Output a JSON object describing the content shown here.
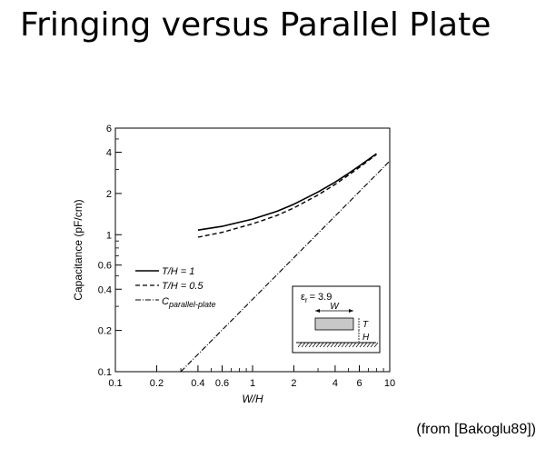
{
  "slide": {
    "title": "Fringing versus Parallel Plate",
    "source": "(from [Bakoglu89])"
  },
  "chart_data": {
    "type": "line",
    "xlabel": "W/H",
    "ylabel": "Capacitance (pF/cm)",
    "xscale": "log",
    "yscale": "log",
    "xlim": [
      0.1,
      10
    ],
    "ylim": [
      0.1,
      6
    ],
    "grid": false,
    "legend_position": "left",
    "x_ticks": [
      0.1,
      0.2,
      0.4,
      0.6,
      1,
      2,
      4,
      6,
      10
    ],
    "x_tick_labels": [
      "0.1",
      "0.2",
      "0.4",
      "0.6",
      "1",
      "2",
      "4",
      "6",
      "10"
    ],
    "y_ticks": [
      0.1,
      0.2,
      0.4,
      0.6,
      1,
      2,
      4,
      6
    ],
    "y_tick_labels": [
      "0.1",
      "0.2",
      "0.4",
      "0.6",
      "1",
      "2",
      "4",
      "6"
    ],
    "series": [
      {
        "name": "T/H = 1",
        "style": "solid",
        "x": [
          0.4,
          0.6,
          1,
          1.5,
          2,
          3,
          4,
          5,
          6,
          8
        ],
        "y": [
          1.08,
          1.15,
          1.3,
          1.48,
          1.67,
          2.05,
          2.42,
          2.8,
          3.18,
          3.9
        ]
      },
      {
        "name": "T/H = 0.5",
        "style": "dashed",
        "x": [
          0.4,
          0.6,
          1,
          1.5,
          2,
          3,
          4,
          5,
          6,
          8
        ],
        "y": [
          0.96,
          1.04,
          1.2,
          1.38,
          1.57,
          1.95,
          2.33,
          2.72,
          3.1,
          3.85
        ]
      },
      {
        "name": "C_parallel-plate",
        "style": "dashdot",
        "x": [
          0.3,
          10
        ],
        "y": [
          0.1,
          3.45
        ]
      }
    ],
    "legend": [
      {
        "text": "T/H = 1",
        "style": "solid"
      },
      {
        "text": "T/H = 0.5",
        "style": "dashed"
      },
      {
        "text": "C",
        "subscript": "parallel-plate",
        "style": "dashdot"
      }
    ],
    "annotations": {
      "permittivity": "ε",
      "permittivity_sub": "r",
      "permittivity_value": "= 3.9",
      "width_label": "W",
      "thickness_label": "T",
      "height_label": "H"
    }
  }
}
